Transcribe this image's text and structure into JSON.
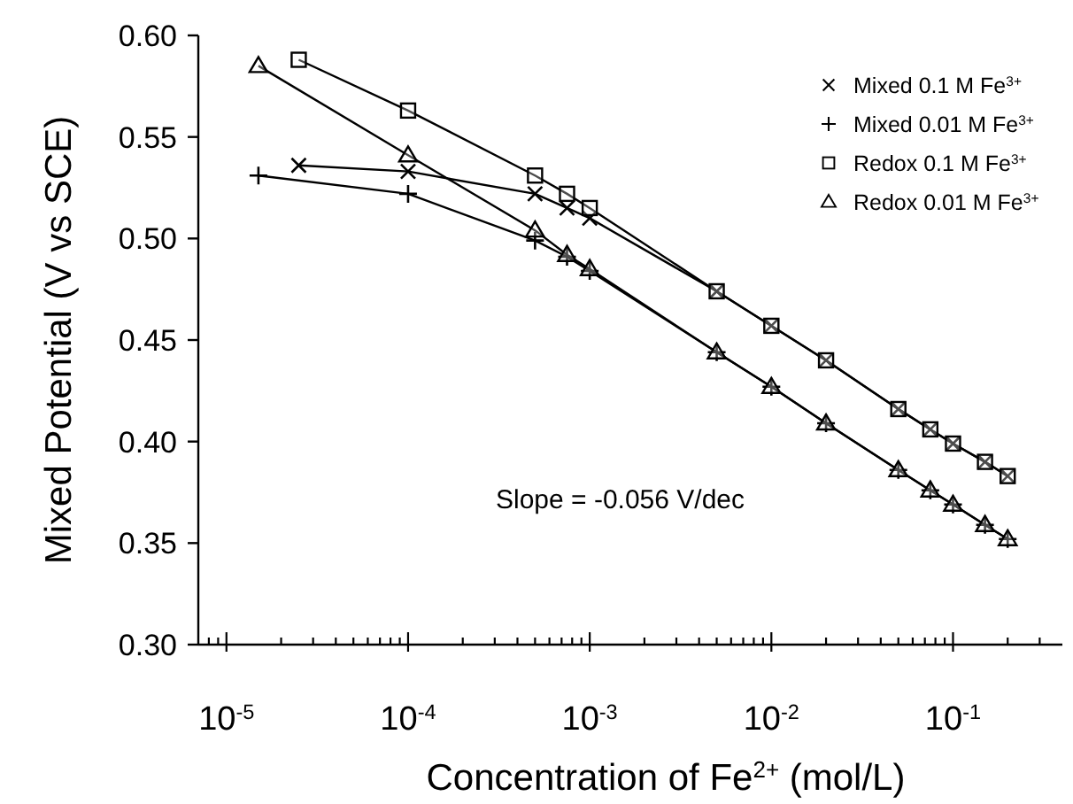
{
  "chart_data": {
    "type": "line",
    "xlabel": "Concentration of Fe$^{2+}$ (mol/L)",
    "ylabel": "Mixed Potential (V vs SCE)",
    "log": "x",
    "xlim": [
      7e-06,
      0.4
    ],
    "xticks": [
      {
        "value": 8e-06,
        "label": null
      },
      {
        "value": 9e-06,
        "label": null
      },
      {
        "value": 1e-05,
        "label": "10$^{-5}$"
      },
      {
        "value": 2e-05,
        "label": null
      },
      {
        "value": 3e-05,
        "label": null
      },
      {
        "value": 4e-05,
        "label": null
      },
      {
        "value": 5e-05,
        "label": null
      },
      {
        "value": 6e-05,
        "label": null
      },
      {
        "value": 7e-05,
        "label": null
      },
      {
        "value": 8e-05,
        "label": null
      },
      {
        "value": 9e-05,
        "label": null
      },
      {
        "value": 0.0001,
        "label": "10$^{-4}$"
      },
      {
        "value": 0.0002,
        "label": null
      },
      {
        "value": 0.0003,
        "label": null
      },
      {
        "value": 0.0004,
        "label": null
      },
      {
        "value": 0.0005,
        "label": null
      },
      {
        "value": 0.0006,
        "label": null
      },
      {
        "value": 0.0007,
        "label": null
      },
      {
        "value": 0.0008,
        "label": null
      },
      {
        "value": 0.0009,
        "label": null
      },
      {
        "value": 0.001,
        "label": "10$^{-3}$"
      },
      {
        "value": 0.002,
        "label": null
      },
      {
        "value": 0.003,
        "label": null
      },
      {
        "value": 0.004,
        "label": null
      },
      {
        "value": 0.005,
        "label": null
      },
      {
        "value": 0.006,
        "label": null
      },
      {
        "value": 0.007,
        "label": null
      },
      {
        "value": 0.008,
        "label": null
      },
      {
        "value": 0.009,
        "label": null
      },
      {
        "value": 0.01,
        "label": "10$^{-2}$"
      },
      {
        "value": 0.02,
        "label": null
      },
      {
        "value": 0.03,
        "label": null
      },
      {
        "value": 0.04,
        "label": null
      },
      {
        "value": 0.05,
        "label": null
      },
      {
        "value": 0.06,
        "label": null
      },
      {
        "value": 0.07,
        "label": null
      },
      {
        "value": 0.08,
        "label": null
      },
      {
        "value": 0.09,
        "label": null
      },
      {
        "value": 0.1,
        "label": "10$^{-1}$"
      },
      {
        "value": 0.2,
        "label": null
      },
      {
        "value": 0.3,
        "label": null
      }
    ],
    "ylim": [
      0.3,
      0.6
    ],
    "yticks": [
      {
        "value": 0.3,
        "label": "0.30"
      },
      {
        "value": 0.35,
        "label": "0.35"
      },
      {
        "value": 0.4,
        "label": "0.40"
      },
      {
        "value": 0.45,
        "label": "0.45"
      },
      {
        "value": 0.5,
        "label": "0.50"
      },
      {
        "value": 0.55,
        "label": "0.55"
      },
      {
        "value": 0.6,
        "label": "0.60"
      }
    ],
    "grid": false,
    "legend": "top right",
    "annotations": [
      "Slope = -0.056 V/dec"
    ],
    "series": [
      {
        "name": "Mixed 0.1 M Fe$^{3+}$",
        "color": "#000000",
        "marker": "cross",
        "x": [
          2.5e-05,
          0.0001,
          0.0005,
          0.00075,
          0.001,
          0.005,
          0.01,
          0.02,
          0.05,
          0.075,
          0.1,
          0.15,
          0.2
        ],
        "values": [
          0.536,
          0.533,
          0.522,
          0.515,
          0.51,
          0.474,
          0.457,
          0.44,
          0.416,
          0.406,
          0.399,
          0.39,
          0.383
        ]
      },
      {
        "name": "Mixed 0.01 M Fe$^{3+}$",
        "color": "#000000",
        "marker": "plus",
        "x": [
          1.5e-05,
          0.0001,
          0.0005,
          0.00075,
          0.001,
          0.005,
          0.01,
          0.02,
          0.05,
          0.075,
          0.1,
          0.15,
          0.2
        ],
        "values": [
          0.531,
          0.522,
          0.499,
          0.491,
          0.484,
          0.444,
          0.427,
          0.409,
          0.386,
          0.376,
          0.369,
          0.359,
          0.352
        ]
      },
      {
        "name": "Redox 0.1 M Fe$^{3+}$",
        "color": "#000000",
        "marker": "square",
        "x": [
          2.5e-05,
          0.0001,
          0.0005,
          0.00075,
          0.001,
          0.005,
          0.01,
          0.02,
          0.05,
          0.075,
          0.1,
          0.15,
          0.2
        ],
        "values": [
          0.588,
          0.563,
          0.531,
          0.522,
          0.515,
          0.474,
          0.457,
          0.44,
          0.416,
          0.406,
          0.399,
          0.39,
          0.383
        ]
      },
      {
        "name": "Redox 0.01 M Fe$^{3+}$",
        "color": "#000000",
        "marker": "triangle",
        "x": [
          1.5e-05,
          0.0001,
          0.0005,
          0.00075,
          0.001,
          0.005,
          0.01,
          0.02,
          0.05,
          0.075,
          0.1,
          0.15,
          0.2
        ],
        "values": [
          0.585,
          0.541,
          0.504,
          0.492,
          0.485,
          0.444,
          0.427,
          0.409,
          0.386,
          0.376,
          0.369,
          0.359,
          0.352
        ]
      }
    ]
  }
}
